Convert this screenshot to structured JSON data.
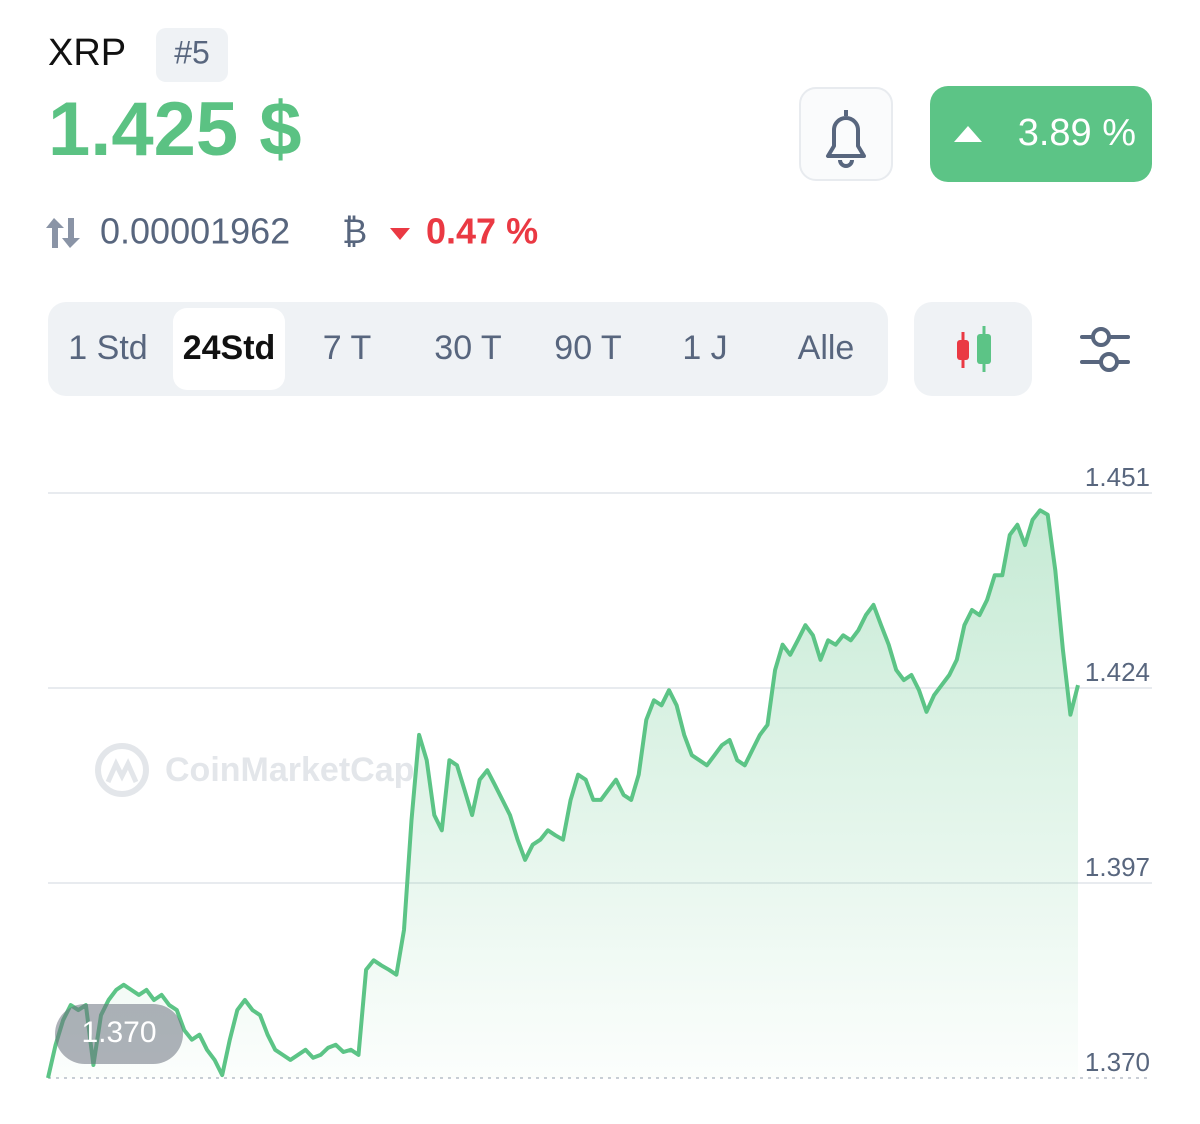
{
  "header": {
    "name": "XRP",
    "rank": "#5",
    "price": "1.425 $",
    "change": "3.89 %",
    "btc_price": "0.00001962",
    "btc_symbol": "₿",
    "btc_change": "0.47 %"
  },
  "tabs": [
    "1 Std",
    "24Std",
    "7 T",
    "30 T",
    "90 T",
    "1 J",
    "Alle"
  ],
  "active_tab": 1,
  "watermark": "CoinMarketCap",
  "chart_data": {
    "type": "line",
    "color": "#5cc486",
    "grid": true,
    "ylim": [
      1.37,
      1.451
    ],
    "yticks": [
      {
        "value": 1.37,
        "label": "1.370"
      },
      1.397,
      1.424,
      1.451
    ],
    "min_label": "1.370",
    "values": [
      1.37,
      1.3746,
      1.378,
      1.3801,
      1.3794,
      1.3801,
      1.3718,
      1.3787,
      1.3808,
      1.3822,
      1.3829,
      1.3822,
      1.3815,
      1.3822,
      1.3808,
      1.3815,
      1.3801,
      1.3794,
      1.3766,
      1.3753,
      1.376,
      1.3739,
      1.3725,
      1.3704,
      1.3753,
      1.3794,
      1.3808,
      1.3794,
      1.3787,
      1.376,
      1.3739,
      1.3732,
      1.3725,
      1.3732,
      1.3739,
      1.3728,
      1.3732,
      1.3742,
      1.3746,
      1.3736,
      1.3739,
      1.3732,
      1.385,
      1.3863,
      1.3856,
      1.385,
      1.3843,
      1.3905,
      1.4057,
      1.4175,
      1.414,
      1.4064,
      1.4043,
      1.414,
      1.4133,
      1.4099,
      1.4064,
      1.4113,
      1.4126,
      1.4106,
      1.4085,
      1.4064,
      1.403,
      1.4002,
      1.4023,
      1.403,
      1.4043,
      1.4036,
      1.403,
      1.4085,
      1.412,
      1.4113,
      1.4085,
      1.4085,
      1.4099,
      1.4113,
      1.4092,
      1.4085,
      1.412,
      1.4196,
      1.4223,
      1.4216,
      1.4237,
      1.4216,
      1.4175,
      1.4147,
      1.414,
      1.4133,
      1.4147,
      1.4161,
      1.4168,
      1.414,
      1.4133,
      1.4154,
      1.4175,
      1.4189,
      1.4265,
      1.43,
      1.4286,
      1.4306,
      1.4327,
      1.4313,
      1.4279,
      1.4306,
      1.43,
      1.4313,
      1.4306,
      1.432,
      1.4341,
      1.4355,
      1.4327,
      1.43,
      1.4265,
      1.4251,
      1.4258,
      1.4237,
      1.4207,
      1.423,
      1.4244,
      1.4258,
      1.4279,
      1.4327,
      1.4348,
      1.4341,
      1.4362,
      1.4396,
      1.4396,
      1.4452,
      1.4466,
      1.4438,
      1.4473,
      1.4486,
      1.448,
      1.4403,
      1.4293,
      1.4203,
      1.4244
    ]
  }
}
